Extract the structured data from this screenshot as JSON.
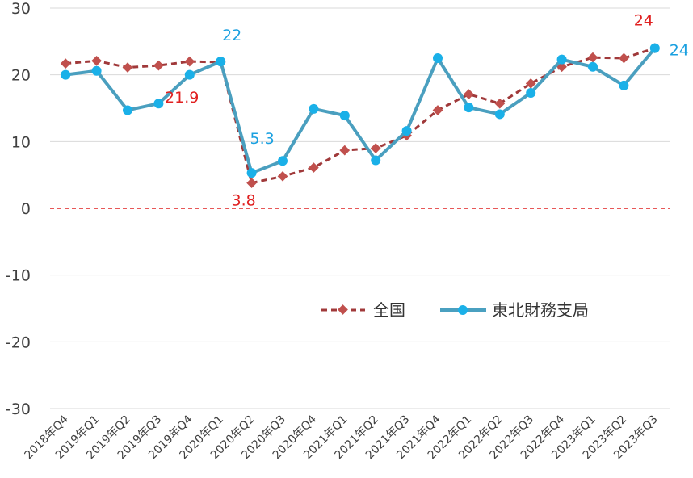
{
  "chart_data": {
    "type": "line",
    "title": "",
    "xlabel": "",
    "ylabel": "",
    "ylim": [
      -30,
      30
    ],
    "yticks": [
      30,
      20,
      10,
      0,
      -10,
      -20,
      -30
    ],
    "grid": "horizontal",
    "legend_position": "inside-bottom-right",
    "categories": [
      "2018年Q4",
      "2019年Q1",
      "2019年Q2",
      "2019年Q3",
      "2019年Q4",
      "2020年Q1",
      "2020年Q2",
      "2020年Q3",
      "2020年Q4",
      "2021年Q1",
      "2021年Q2",
      "2021年Q3",
      "2021年Q4",
      "2022年Q1",
      "2022年Q2",
      "2022年Q3",
      "2022年Q4",
      "2023年Q1",
      "2023年Q2",
      "2023年Q3"
    ],
    "series": [
      {
        "name": "全国",
        "color": "#a0393a",
        "style": "dashed",
        "marker": "diamond",
        "values": [
          21.7,
          22.1,
          21.1,
          21.4,
          22.0,
          21.9,
          3.8,
          4.8,
          6.1,
          8.7,
          9.0,
          10.9,
          14.7,
          17.1,
          15.7,
          18.7,
          21.2,
          22.6,
          22.5,
          24.0
        ]
      },
      {
        "name": "東北財務支局",
        "color": "#2ea8d8",
        "style": "solid",
        "marker": "circle",
        "values": [
          20.0,
          20.6,
          14.7,
          15.7,
          20.0,
          22.0,
          5.3,
          7.1,
          14.9,
          13.9,
          7.2,
          11.6,
          22.5,
          15.1,
          14.1,
          17.3,
          22.3,
          21.2,
          18.4,
          24.0
        ]
      }
    ],
    "reference_line": {
      "value": 0,
      "color": "#e02020",
      "style": "dashed"
    },
    "annotations": [
      {
        "series": 0,
        "index": 5,
        "text": "21.9",
        "color": "#e02020"
      },
      {
        "series": 1,
        "index": 5,
        "text": "22",
        "color": "#1aa0e0"
      },
      {
        "series": 0,
        "index": 6,
        "text": "3.8",
        "color": "#e02020"
      },
      {
        "series": 1,
        "index": 6,
        "text": "5.3",
        "color": "#1aa0e0"
      },
      {
        "series": 0,
        "index": 19,
        "text": "24",
        "color": "#e02020"
      },
      {
        "series": 1,
        "index": 19,
        "text": "24",
        "color": "#1aa0e0"
      }
    ]
  }
}
